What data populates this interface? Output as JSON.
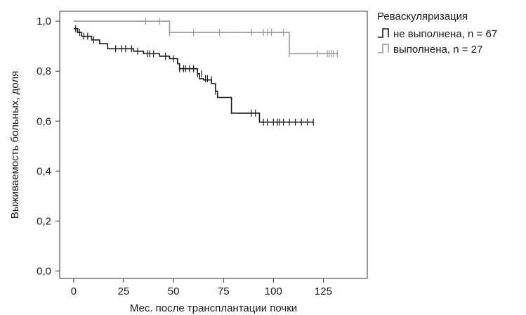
{
  "chart_data": {
    "type": "line",
    "xlabel": "Мес. после трансплантации почки",
    "ylabel": "Выживаемость больных, доля",
    "xlim": [
      -7,
      147
    ],
    "ylim": [
      -0.03,
      1.04
    ],
    "x_ticks": [
      0,
      25,
      50,
      75,
      100,
      125
    ],
    "y_ticks": [
      0.0,
      0.2,
      0.4,
      0.6,
      0.8,
      1.0
    ],
    "y_tick_labels": [
      "0,0",
      "0,2",
      "0,4",
      "0,6",
      "0,8",
      "1,0"
    ],
    "legend": {
      "title": "Реваскуляризация",
      "position": "top-right-outside"
    },
    "series": [
      {
        "name": "не выполнена, n = 67",
        "color": "#1a1a1a",
        "steps": [
          [
            0,
            0.97
          ],
          [
            2,
            0.955
          ],
          [
            4,
            0.94
          ],
          [
            9,
            0.925
          ],
          [
            13,
            0.91
          ],
          [
            17,
            0.89
          ],
          [
            30,
            0.88
          ],
          [
            35,
            0.87
          ],
          [
            43,
            0.86
          ],
          [
            48,
            0.85
          ],
          [
            52,
            0.83
          ],
          [
            53,
            0.81
          ],
          [
            62,
            0.79
          ],
          [
            63,
            0.77
          ],
          [
            65,
            0.765
          ],
          [
            69,
            0.75
          ],
          [
            71,
            0.72
          ],
          [
            72,
            0.695
          ],
          [
            79,
            0.632
          ],
          [
            93,
            0.596
          ],
          [
            120,
            0.596
          ]
        ],
        "censored": [
          [
            1,
            0.97
          ],
          [
            3,
            0.955
          ],
          [
            5,
            0.94
          ],
          [
            7,
            0.94
          ],
          [
            10,
            0.925
          ],
          [
            21,
            0.89
          ],
          [
            24,
            0.89
          ],
          [
            26,
            0.89
          ],
          [
            29,
            0.89
          ],
          [
            32,
            0.88
          ],
          [
            37,
            0.87
          ],
          [
            38,
            0.87
          ],
          [
            40,
            0.87
          ],
          [
            46,
            0.86
          ],
          [
            50,
            0.85
          ],
          [
            53,
            0.81
          ],
          [
            55,
            0.81
          ],
          [
            56,
            0.81
          ],
          [
            58,
            0.81
          ],
          [
            60,
            0.81
          ],
          [
            62,
            0.79
          ],
          [
            64,
            0.79
          ],
          [
            66,
            0.77
          ],
          [
            67,
            0.77
          ],
          [
            69,
            0.765
          ],
          [
            71,
            0.72
          ],
          [
            89,
            0.632
          ],
          [
            91,
            0.632
          ],
          [
            95,
            0.596
          ],
          [
            97,
            0.596
          ],
          [
            100,
            0.596
          ],
          [
            102,
            0.596
          ],
          [
            103,
            0.596
          ],
          [
            105,
            0.596
          ],
          [
            108,
            0.596
          ],
          [
            111,
            0.596
          ],
          [
            114,
            0.596
          ],
          [
            117,
            0.596
          ],
          [
            120,
            0.596
          ]
        ]
      },
      {
        "name": "выполнена, n = 27",
        "color": "#999999",
        "steps": [
          [
            0,
            1.0
          ],
          [
            48,
            0.955
          ],
          [
            108,
            0.87
          ],
          [
            132,
            0.87
          ]
        ],
        "censored": [
          [
            36,
            1.0
          ],
          [
            43,
            1.0
          ],
          [
            48,
            0.955
          ],
          [
            60,
            0.955
          ],
          [
            73,
            0.955
          ],
          [
            89,
            0.955
          ],
          [
            95,
            0.955
          ],
          [
            97,
            0.955
          ],
          [
            99,
            0.955
          ],
          [
            105,
            0.955
          ],
          [
            108,
            0.87
          ],
          [
            122,
            0.87
          ],
          [
            127,
            0.87
          ],
          [
            128,
            0.87
          ],
          [
            129,
            0.87
          ],
          [
            130,
            0.87
          ],
          [
            132,
            0.87
          ]
        ]
      }
    ]
  }
}
